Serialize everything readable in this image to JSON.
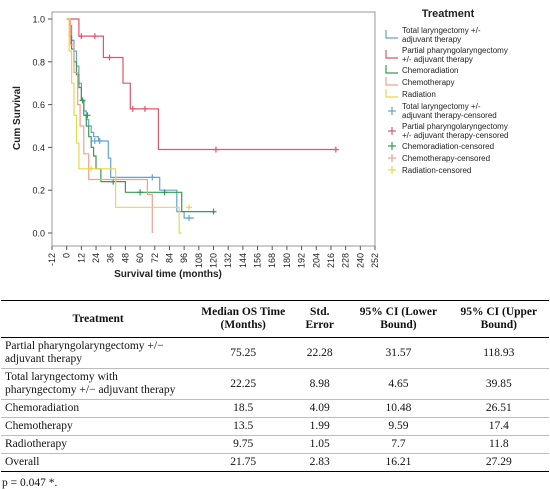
{
  "chart_data": {
    "type": "line",
    "xlabel": "Survival time (months)",
    "ylabel": "Cum Survival",
    "xlim": [
      -12,
      252
    ],
    "ylim": [
      0.0,
      1.0
    ],
    "xticks": [
      -12,
      0,
      12,
      24,
      36,
      48,
      60,
      72,
      84,
      96,
      108,
      120,
      132,
      144,
      156,
      168,
      180,
      192,
      204,
      216,
      228,
      240,
      252
    ],
    "yticks": [
      0.0,
      0.2,
      0.4,
      0.6,
      0.8,
      1.0
    ],
    "legend_title": "Treatment",
    "legend": [
      "Total laryngectomy +/- adjuvant therapy",
      "Partial pharyngolaryngectomy +/- adjuvant therapy",
      "Chemoradiation",
      "Chemotherapy",
      "Radiation",
      "Total laryngectomy +/- adjuvant therapy-censored",
      "Partial pharyngolaryngectomy +/- adjuvant therapy-censored",
      "Chemoradiation-censored",
      "Chemotherapy-censored",
      "Radiation-censored"
    ],
    "series": [
      {
        "name": "Total laryngectomy +/- adjuvant therapy",
        "color": "#5fa5d6",
        "steps": [
          [
            0,
            1.0
          ],
          [
            2,
            0.97
          ],
          [
            4,
            0.9
          ],
          [
            6,
            0.85
          ],
          [
            8,
            0.78
          ],
          [
            10,
            0.7
          ],
          [
            12,
            0.62
          ],
          [
            14,
            0.57
          ],
          [
            16,
            0.53
          ],
          [
            18,
            0.5
          ],
          [
            20,
            0.47
          ],
          [
            22,
            0.45
          ],
          [
            26,
            0.43
          ],
          [
            34,
            0.35
          ],
          [
            36,
            0.26
          ],
          [
            60,
            0.26
          ],
          [
            76,
            0.2
          ],
          [
            90,
            0.1
          ],
          [
            96,
            0.07
          ],
          [
            104,
            0.07
          ]
        ],
        "censored": [
          [
            23,
            0.43
          ],
          [
            27,
            0.43
          ],
          [
            70,
            0.26
          ],
          [
            100,
            0.07
          ]
        ]
      },
      {
        "name": "Partial pharyngolaryngectomy +/- adjuvant therapy",
        "color": "#e0566a",
        "steps": [
          [
            0,
            1.0
          ],
          [
            10,
            0.92
          ],
          [
            30,
            0.82
          ],
          [
            46,
            0.7
          ],
          [
            52,
            0.58
          ],
          [
            70,
            0.58
          ],
          [
            75,
            0.39
          ],
          [
            222,
            0.39
          ]
        ],
        "censored": [
          [
            12,
            0.92
          ],
          [
            23,
            0.92
          ],
          [
            35,
            0.82
          ],
          [
            54,
            0.58
          ],
          [
            64,
            0.58
          ],
          [
            122,
            0.39
          ],
          [
            220,
            0.39
          ]
        ]
      },
      {
        "name": "Chemoradiation",
        "color": "#3a9a55",
        "steps": [
          [
            0,
            1.0
          ],
          [
            2,
            0.92
          ],
          [
            4,
            0.86
          ],
          [
            6,
            0.8
          ],
          [
            8,
            0.74
          ],
          [
            10,
            0.68
          ],
          [
            12,
            0.62
          ],
          [
            14,
            0.55
          ],
          [
            16,
            0.5
          ],
          [
            18,
            0.45
          ],
          [
            20,
            0.4
          ],
          [
            22,
            0.36
          ],
          [
            24,
            0.3
          ],
          [
            28,
            0.24
          ],
          [
            44,
            0.24
          ],
          [
            48,
            0.19
          ],
          [
            92,
            0.19
          ],
          [
            94,
            0.1
          ],
          [
            122,
            0.1
          ]
        ],
        "censored": [
          [
            13,
            0.62
          ],
          [
            17,
            0.55
          ],
          [
            38,
            0.24
          ],
          [
            60,
            0.19
          ],
          [
            80,
            0.19
          ],
          [
            120,
            0.1
          ]
        ]
      },
      {
        "name": "Chemotherapy",
        "color": "#f0a090",
        "steps": [
          [
            0,
            1.0
          ],
          [
            3,
            0.88
          ],
          [
            6,
            0.75
          ],
          [
            9,
            0.6
          ],
          [
            11,
            0.5
          ],
          [
            14,
            0.37
          ],
          [
            18,
            0.25
          ],
          [
            60,
            0.25
          ],
          [
            66,
            0.18
          ],
          [
            70,
            0.0
          ]
        ],
        "censored": [
          [
            40,
            0.25
          ]
        ]
      },
      {
        "name": "Radiation",
        "color": "#e8d84a",
        "steps": [
          [
            0,
            1.0
          ],
          [
            2,
            0.85
          ],
          [
            4,
            0.7
          ],
          [
            6,
            0.55
          ],
          [
            8,
            0.42
          ],
          [
            10,
            0.3
          ],
          [
            38,
            0.3
          ],
          [
            40,
            0.12
          ],
          [
            88,
            0.12
          ],
          [
            92,
            0.0
          ],
          [
            94,
            0.0
          ]
        ],
        "censored": [
          [
            20,
            0.3
          ],
          [
            100,
            0.12
          ]
        ]
      }
    ]
  },
  "table": {
    "headers": [
      "Treatment",
      "Median OS Time (Months)",
      "Std. Error",
      "95% CI (Lower Bound)",
      "95% CI (Upper Bound)"
    ],
    "rows": [
      [
        "Partial pharyngolaryngectomy +/− adjuvant therapy",
        "75.25",
        "22.28",
        "31.57",
        "118.93"
      ],
      [
        "Total laryngectomy with pharyngectomy +/− adjuvant therapy",
        "22.25",
        "8.98",
        "4.65",
        "39.85"
      ],
      [
        "Chemoradiation",
        "18.5",
        "4.09",
        "10.48",
        "26.51"
      ],
      [
        "Chemotherapy",
        "13.5",
        "1.99",
        "9.59",
        "17.4"
      ],
      [
        "Radiotherapy",
        "9.75",
        "1.05",
        "7.7",
        "11.8"
      ],
      [
        "Overall",
        "21.75",
        "2.83",
        "16.21",
        "27.29"
      ]
    ],
    "note": "p = 0.047 *."
  }
}
